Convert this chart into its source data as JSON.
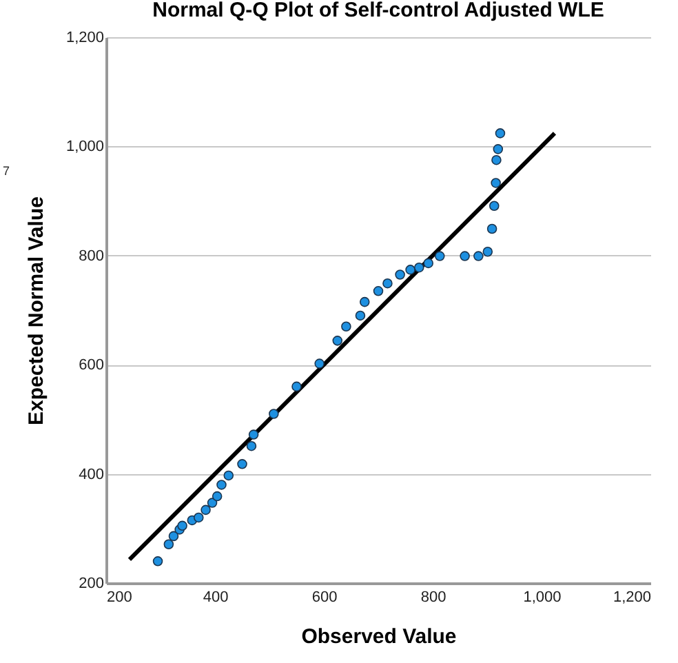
{
  "chart_data": {
    "type": "scatter",
    "title": "Normal Q-Q Plot of Self-control Adjusted WLE",
    "xlabel": "Observed Value",
    "ylabel": "Expected Normal Value",
    "annotations": [
      "7"
    ],
    "xlim": [
      200,
      1200
    ],
    "ylim": [
      200,
      1200
    ],
    "xticks": [
      200,
      400,
      600,
      800,
      {
        "value": 1000,
        "label": "1,000"
      },
      {
        "value": 1200,
        "label": "1,200"
      }
    ],
    "yticks": [
      200,
      400,
      600,
      800,
      {
        "value": 1000,
        "label": "1,000"
      },
      {
        "value": 1200,
        "label": "1,200"
      }
    ],
    "grid": "y",
    "marker": "circle",
    "series": [
      {
        "color": "#1e90e0",
        "x": [
          295,
          315,
          324,
          335,
          340,
          358,
          370,
          383,
          395,
          404,
          412,
          425,
          450,
          467,
          471,
          508,
          550,
          592,
          625,
          641,
          667,
          675,
          700,
          717,
          740,
          759,
          775,
          792,
          813,
          859,
          884,
          901,
          909,
          913,
          916,
          917,
          920,
          924
        ],
        "values": [
          240,
          271,
          286,
          298,
          305,
          315,
          320,
          334,
          347,
          359,
          380,
          397,
          418,
          451,
          472,
          510,
          560,
          602,
          644,
          670,
          690,
          715,
          735,
          749,
          765,
          774,
          778,
          786,
          799,
          799,
          799,
          807,
          849,
          891,
          933,
          975,
          995,
          1024
        ]
      },
      {
        "type": "line",
        "color": "#000000",
        "line_style": "solid",
        "marker": "none",
        "x": [
          243,
          1024
        ],
        "values": [
          243,
          1024
        ]
      }
    ]
  }
}
